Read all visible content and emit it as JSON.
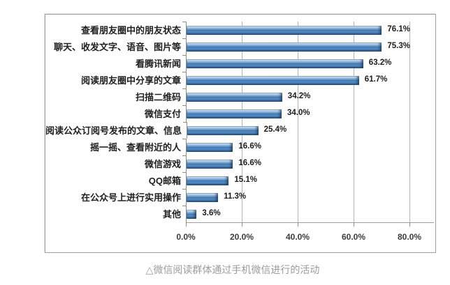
{
  "caption": {
    "text": "△微信阅读群体通过手机微信进行的活动"
  },
  "chart_data": {
    "type": "bar",
    "orientation": "horizontal",
    "title": "",
    "categories": [
      "查看朋友圈中的朋友状态",
      "聊天、收发文字、语音、图片等",
      "看腾讯新闻",
      "阅读朋友圈中分享的文章",
      "扫描二维码",
      "微信支付",
      "阅读公众订阅号发布的文章、信息",
      "摇一摇、查看附近的人",
      "微信游戏",
      "QQ邮箱",
      "在公众号上进行实用操作",
      "其他"
    ],
    "values": [
      76.1,
      75.3,
      63.2,
      61.7,
      34.2,
      34.0,
      25.4,
      16.6,
      16.6,
      15.1,
      11.3,
      3.6
    ],
    "value_labels": [
      "76.1%",
      "75.3%",
      "63.2%",
      "61.7%",
      "34.2%",
      "34.0%",
      "25.4%",
      "16.6%",
      "16.6%",
      "15.1%",
      "11.3%",
      "3.6%"
    ],
    "x_ticks": [
      "0.0%",
      "20.0%",
      "40.0%",
      "60.0%",
      "80.0%"
    ],
    "xlim": [
      0,
      80
    ],
    "grid": true,
    "legend": false,
    "bar_color": "#4a80b5",
    "gridline_color": "#b6b6b6",
    "axis_color": "#8c8c8c"
  }
}
